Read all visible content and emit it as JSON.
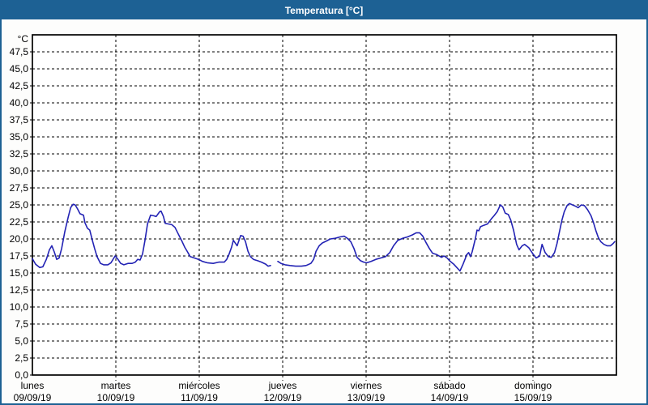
{
  "window": {
    "title": "Temperatura [°C]"
  },
  "chart_data": {
    "type": "line",
    "title": "Temperatura [°C]",
    "legend": "none",
    "grid": true,
    "colors": {
      "line": "#2323B4",
      "grid": "#000000",
      "frame": "#000000",
      "titlebar": "#1D6194",
      "titlebar_text": "#FFFFFF",
      "background": "#FDFDFC",
      "plot_background": "#FFFFFF"
    },
    "y_axis": {
      "unit": "°C",
      "min": 0,
      "max": 50,
      "tick_step": 2.5,
      "tick_values": [
        0,
        2.5,
        5,
        7.5,
        10,
        12.5,
        15,
        17.5,
        20,
        22.5,
        25,
        27.5,
        30,
        32.5,
        35,
        37.5,
        40,
        42.5,
        45,
        47.5
      ],
      "tick_labels": [
        "0,0",
        "2,5",
        "5,0",
        "7,5",
        "10,0",
        "12,5",
        "15,0",
        "17,5",
        "20,0",
        "22,5",
        "25,0",
        "27,5",
        "30,0",
        "32,5",
        "35,0",
        "37,5",
        "40,0",
        "42,5",
        "45,0",
        "47,5"
      ]
    },
    "x_axis": {
      "hours_total": 168,
      "days": [
        {
          "name": "lunes",
          "date": "09/09/19"
        },
        {
          "name": "martes",
          "date": "10/09/19"
        },
        {
          "name": "miércoles",
          "date": "11/09/19"
        },
        {
          "name": "jueves",
          "date": "12/09/19"
        },
        {
          "name": "viernes",
          "date": "13/09/19"
        },
        {
          "name": "sábado",
          "date": "14/09/19"
        },
        {
          "name": "domingo",
          "date": "15/09/19"
        }
      ]
    },
    "series": [
      {
        "name": "Temperatura",
        "unit": "°C",
        "x_unit": "hours_from_monday_00",
        "segments": [
          [
            [
              0,
              17.1
            ],
            [
              0.9,
              16.3
            ],
            [
              2.1,
              15.8
            ],
            [
              3,
              15.9
            ],
            [
              4,
              17
            ],
            [
              4.9,
              18.4
            ],
            [
              5.6,
              19
            ],
            [
              6.3,
              18.1
            ],
            [
              7,
              17
            ],
            [
              7.7,
              17.2
            ],
            [
              8.4,
              18.6
            ],
            [
              9.3,
              21
            ],
            [
              10.3,
              23.2
            ],
            [
              11,
              24.6
            ],
            [
              11.7,
              25.1
            ],
            [
              12.3,
              25
            ],
            [
              13,
              24.4
            ],
            [
              13.7,
              23.7
            ],
            [
              14.7,
              23.5
            ],
            [
              15.1,
              22.4
            ],
            [
              15.8,
              21.6
            ],
            [
              16.5,
              21.3
            ],
            [
              17.2,
              19.9
            ],
            [
              17.9,
              18.6
            ],
            [
              18.6,
              17.4
            ],
            [
              19.6,
              16.4
            ],
            [
              20.5,
              16.2
            ],
            [
              21.7,
              16.2
            ],
            [
              22.6,
              16.5
            ],
            [
              23.8,
              17.5
            ],
            [
              24.5,
              17.1
            ],
            [
              25.4,
              16.4
            ],
            [
              26.3,
              16.2
            ],
            [
              27.5,
              16.4
            ],
            [
              28.7,
              16.4
            ],
            [
              29.6,
              16.6
            ],
            [
              30.3,
              17
            ],
            [
              31,
              16.9
            ],
            [
              31.7,
              17.8
            ],
            [
              32.4,
              19.8
            ],
            [
              33.1,
              22.2
            ],
            [
              34,
              23.5
            ],
            [
              34.9,
              23.4
            ],
            [
              35.6,
              23.3
            ],
            [
              36.6,
              24
            ],
            [
              37,
              24.1
            ],
            [
              37.7,
              23.3
            ],
            [
              38.2,
              22.3
            ],
            [
              39.1,
              22.2
            ],
            [
              40.1,
              22.1
            ],
            [
              41,
              21.7
            ],
            [
              41.9,
              20.8
            ],
            [
              42.9,
              19.8
            ],
            [
              43.8,
              18.8
            ],
            [
              44.5,
              18.2
            ],
            [
              45.4,
              17.4
            ],
            [
              46.6,
              17.2
            ],
            [
              47.8,
              17
            ],
            [
              48.9,
              16.7
            ],
            [
              50.3,
              16.5
            ],
            [
              52,
              16.4
            ],
            [
              53.6,
              16.6
            ],
            [
              55.2,
              16.6
            ],
            [
              55.9,
              17
            ],
            [
              56.6,
              17.8
            ],
            [
              57.3,
              18.8
            ],
            [
              57.8,
              19.8
            ],
            [
              58.9,
              19
            ],
            [
              59.9,
              20.5
            ],
            [
              60.6,
              20.4
            ],
            [
              61.3,
              19.6
            ],
            [
              62,
              18.2
            ],
            [
              62.7,
              17.4
            ],
            [
              63.6,
              17
            ],
            [
              64.8,
              16.8
            ],
            [
              65.9,
              16.6
            ],
            [
              67.1,
              16.3
            ],
            [
              67.8,
              16
            ],
            [
              68.5,
              16.1
            ]
          ],
          [
            [
              70.6,
              16.7
            ],
            [
              71.5,
              16.4
            ],
            [
              72.7,
              16.2
            ],
            [
              74.1,
              16.1
            ],
            [
              75.7,
              16
            ],
            [
              77.4,
              16
            ],
            [
              78.7,
              16.1
            ],
            [
              80.1,
              16.4
            ],
            [
              80.9,
              17
            ],
            [
              81.6,
              18.2
            ],
            [
              82.5,
              19
            ],
            [
              83.4,
              19.4
            ],
            [
              84.6,
              19.7
            ],
            [
              85.7,
              20
            ],
            [
              87.1,
              20.1
            ],
            [
              88.5,
              20.3
            ],
            [
              89.7,
              20.4
            ],
            [
              90.6,
              20.1
            ],
            [
              91.6,
              19.6
            ],
            [
              92.5,
              18.6
            ],
            [
              93.4,
              17.3
            ],
            [
              94.4,
              16.8
            ],
            [
              95.3,
              16.6
            ],
            [
              96.2,
              16.5
            ],
            [
              97.4,
              16.7
            ],
            [
              98.8,
              17
            ],
            [
              100.2,
              17.2
            ],
            [
              101.6,
              17.4
            ],
            [
              102.8,
              18
            ],
            [
              103.9,
              19
            ],
            [
              105.1,
              19.8
            ],
            [
              106.5,
              20.1
            ],
            [
              107.9,
              20.3
            ],
            [
              109.3,
              20.6
            ],
            [
              110.4,
              20.9
            ],
            [
              111.4,
              20.9
            ],
            [
              112.3,
              20.4
            ],
            [
              113.2,
              19.5
            ],
            [
              114.2,
              18.6
            ],
            [
              115.1,
              17.9
            ],
            [
              116.3,
              17.7
            ],
            [
              117.7,
              17.3
            ],
            [
              118.4,
              17.5
            ],
            [
              119.3,
              17.2
            ],
            [
              120,
              16.8
            ],
            [
              121.2,
              16.3
            ],
            [
              122.1,
              15.8
            ],
            [
              123,
              15.3
            ],
            [
              123.9,
              16.3
            ],
            [
              124.6,
              17.2
            ],
            [
              124.8,
              17.6
            ],
            [
              125.5,
              18
            ],
            [
              126,
              17.4
            ],
            [
              126.5,
              18.1
            ],
            [
              127.4,
              20
            ],
            [
              127.9,
              21.3
            ],
            [
              128.4,
              21.2
            ],
            [
              128.9,
              21.8
            ],
            [
              129.8,
              22
            ],
            [
              130.9,
              22.2
            ],
            [
              132.1,
              23
            ],
            [
              132.8,
              23.4
            ],
            [
              133.7,
              24
            ],
            [
              134.6,
              25
            ],
            [
              135.3,
              24.7
            ],
            [
              136,
              23.8
            ],
            [
              136.9,
              23.6
            ],
            [
              137.6,
              22.8
            ],
            [
              138.4,
              21.3
            ],
            [
              139.3,
              19.2
            ],
            [
              140,
              18.4
            ],
            [
              140.9,
              19
            ],
            [
              141.6,
              19.2
            ],
            [
              142.8,
              18.7
            ],
            [
              144,
              17.8
            ],
            [
              144.9,
              17.2
            ],
            [
              145.9,
              17.5
            ],
            [
              146.6,
              19.2
            ],
            [
              147.5,
              18
            ],
            [
              148.4,
              17.4
            ],
            [
              149.3,
              17.3
            ],
            [
              150.2,
              18
            ],
            [
              150.9,
              19.3
            ],
            [
              151.6,
              21
            ],
            [
              152.3,
              22.7
            ],
            [
              153,
              24
            ],
            [
              153.8,
              24.9
            ],
            [
              154.5,
              25.2
            ],
            [
              155.4,
              25
            ],
            [
              156.3,
              24.8
            ],
            [
              157,
              24.6
            ],
            [
              157.9,
              25
            ],
            [
              158.8,
              24.9
            ],
            [
              159.7,
              24.3
            ],
            [
              160.7,
              23.4
            ],
            [
              161.4,
              22.4
            ],
            [
              162.1,
              21.2
            ],
            [
              162.8,
              20.2
            ],
            [
              163.5,
              19.6
            ],
            [
              164.4,
              19.2
            ],
            [
              165.3,
              19
            ],
            [
              166.3,
              19
            ],
            [
              167,
              19.3
            ],
            [
              167.5,
              19.6
            ]
          ]
        ]
      }
    ]
  }
}
